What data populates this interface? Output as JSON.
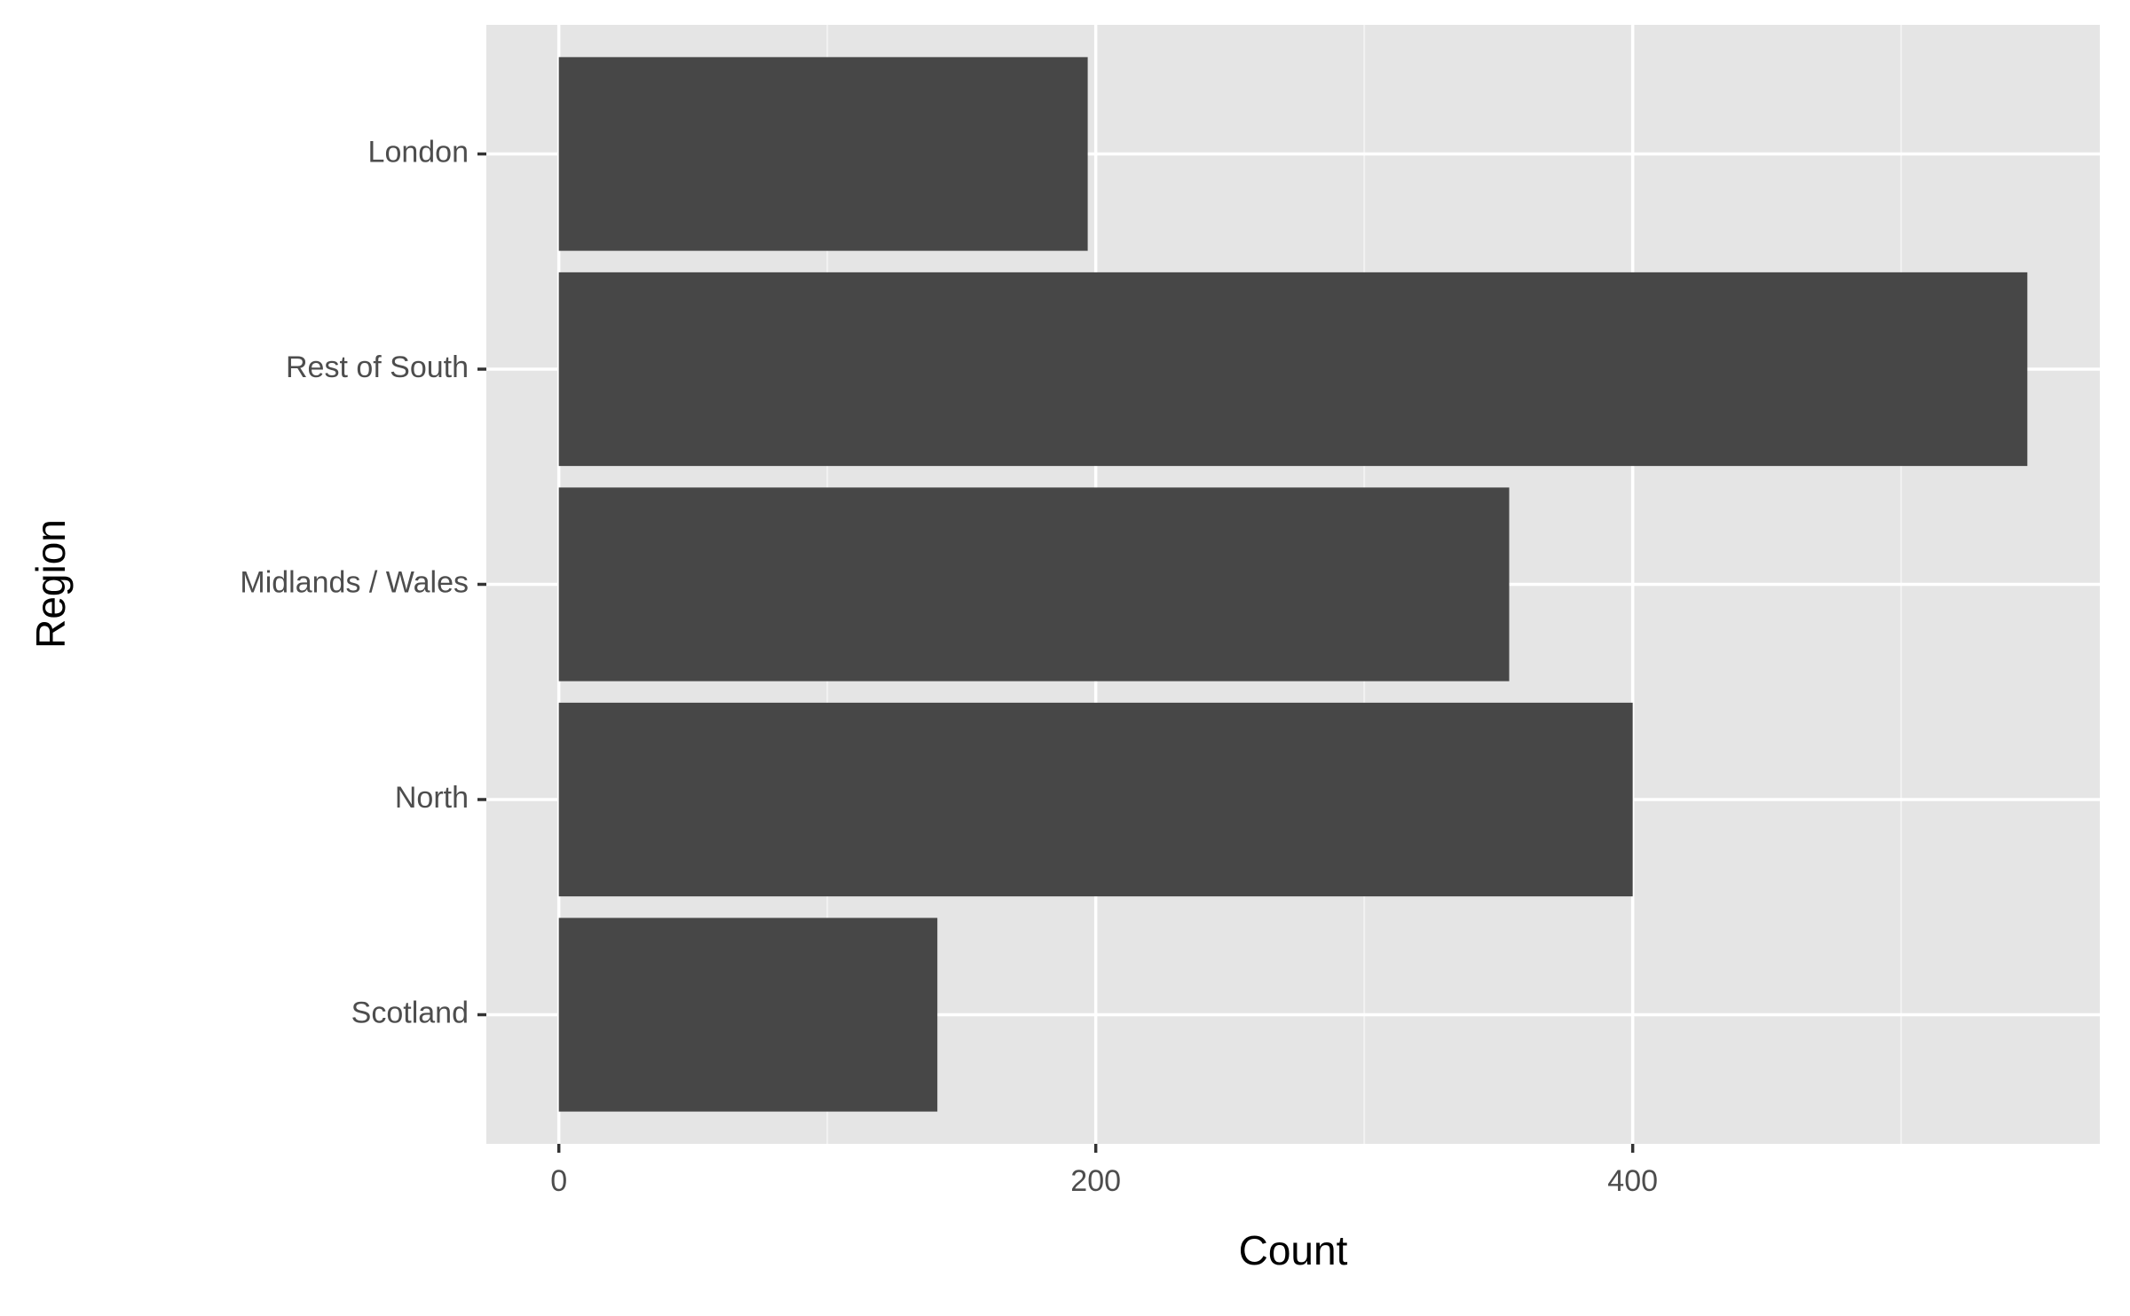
{
  "chart_data": {
    "type": "barh",
    "x_label": "Count",
    "y_label": "Region",
    "categories": [
      "London",
      "Rest of South",
      "Midlands / Wales",
      "North",
      "Scotland"
    ],
    "values": [
      197,
      547,
      354,
      400,
      141
    ],
    "color": "#474747",
    "xlim": [
      -27,
      574
    ],
    "xticks": [
      0,
      200,
      400
    ],
    "xticks_minor": [
      100,
      300,
      500
    ],
    "grid": true
  }
}
